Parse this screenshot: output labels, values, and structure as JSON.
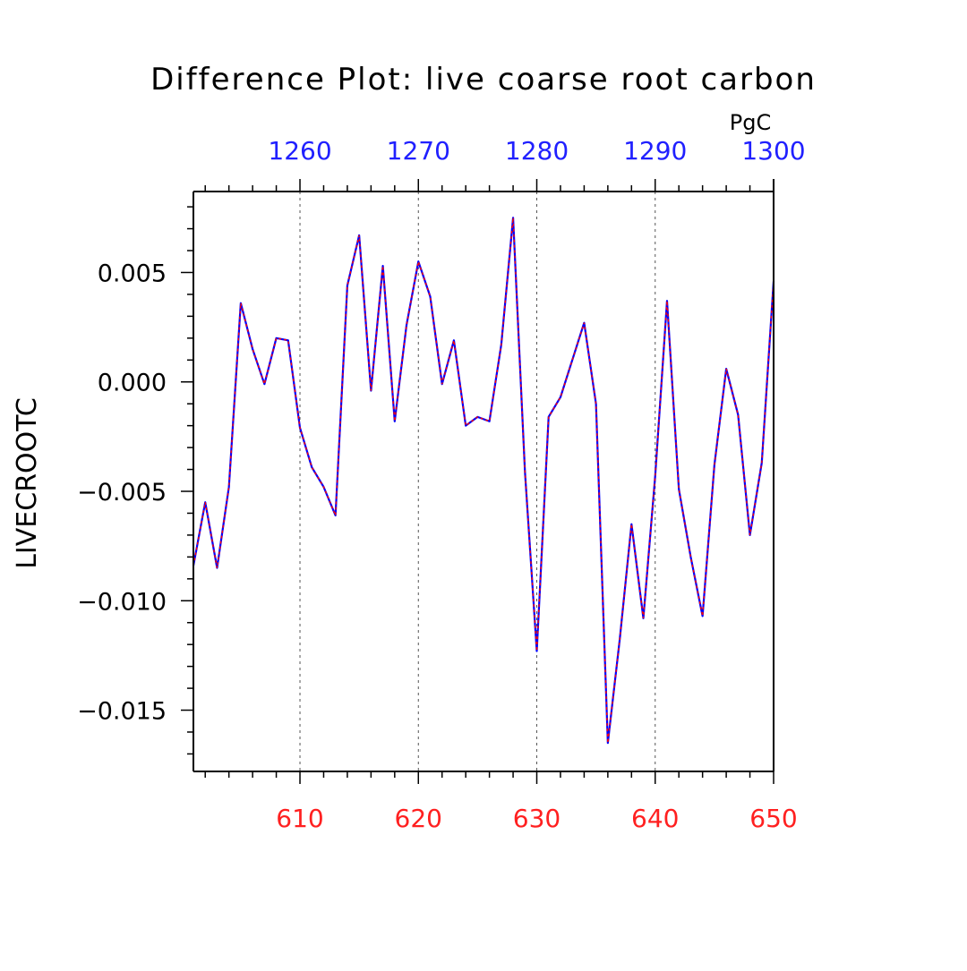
{
  "colors": {
    "bottom_axis": "#ff2020",
    "top_axis": "#2020ff",
    "line_primary": "#0000ff",
    "line_overlay": "#ff0000",
    "grid": "#555555",
    "frame": "#000000"
  },
  "chart_data": {
    "type": "line",
    "title": "Difference Plot: live coarse root carbon",
    "ylabel": "LIVECROOTC",
    "top_axis_unit": "PgC",
    "xlim": [
      601,
      650
    ],
    "ylim": [
      -0.0178,
      0.0087
    ],
    "grid": "vertical dashed",
    "x_ticks": [
      610,
      620,
      630,
      640,
      650
    ],
    "x_tick_labels": [
      "610",
      "620",
      "630",
      "640",
      "650"
    ],
    "top_ticks": [
      610,
      620,
      630,
      640,
      650
    ],
    "top_tick_labels": [
      "1260",
      "1270",
      "1280",
      "1290",
      "1300"
    ],
    "y_ticks": [
      0.005,
      0.0,
      -0.005,
      -0.01,
      -0.015
    ],
    "y_tick_labels": [
      "0.005",
      "0.000",
      "−0.005",
      "−0.010",
      "−0.015"
    ],
    "x": [
      601,
      602,
      603,
      604,
      605,
      606,
      607,
      608,
      609,
      610,
      611,
      612,
      613,
      614,
      615,
      616,
      617,
      618,
      619,
      620,
      621,
      622,
      623,
      624,
      625,
      626,
      627,
      628,
      629,
      630,
      631,
      632,
      633,
      634,
      635,
      636,
      637,
      638,
      639,
      640,
      641,
      642,
      643,
      644,
      645,
      646,
      647,
      648,
      649,
      650
    ],
    "series": [
      {
        "values": [
          -0.0084,
          -0.0055,
          -0.0085,
          -0.0048,
          0.0036,
          0.0015,
          -0.0001,
          0.002,
          0.0019,
          -0.0021,
          -0.0039,
          -0.0048,
          -0.0061,
          0.0044,
          0.0067,
          -0.0004,
          0.0053,
          -0.0018,
          0.0026,
          0.0055,
          0.0039,
          -0.0001,
          0.0019,
          -0.002,
          -0.0016,
          -0.0018,
          0.0017,
          0.0075,
          -0.0041,
          -0.0123,
          -0.0016,
          -0.0007,
          0.001,
          0.0027,
          -0.001,
          -0.0165,
          -0.0118,
          -0.0065,
          -0.0108,
          -0.0043,
          0.0037,
          -0.0049,
          -0.008,
          -0.0107,
          -0.0038,
          0.0006,
          -0.0015,
          -0.007,
          -0.0037,
          0.0046
        ]
      }
    ]
  }
}
